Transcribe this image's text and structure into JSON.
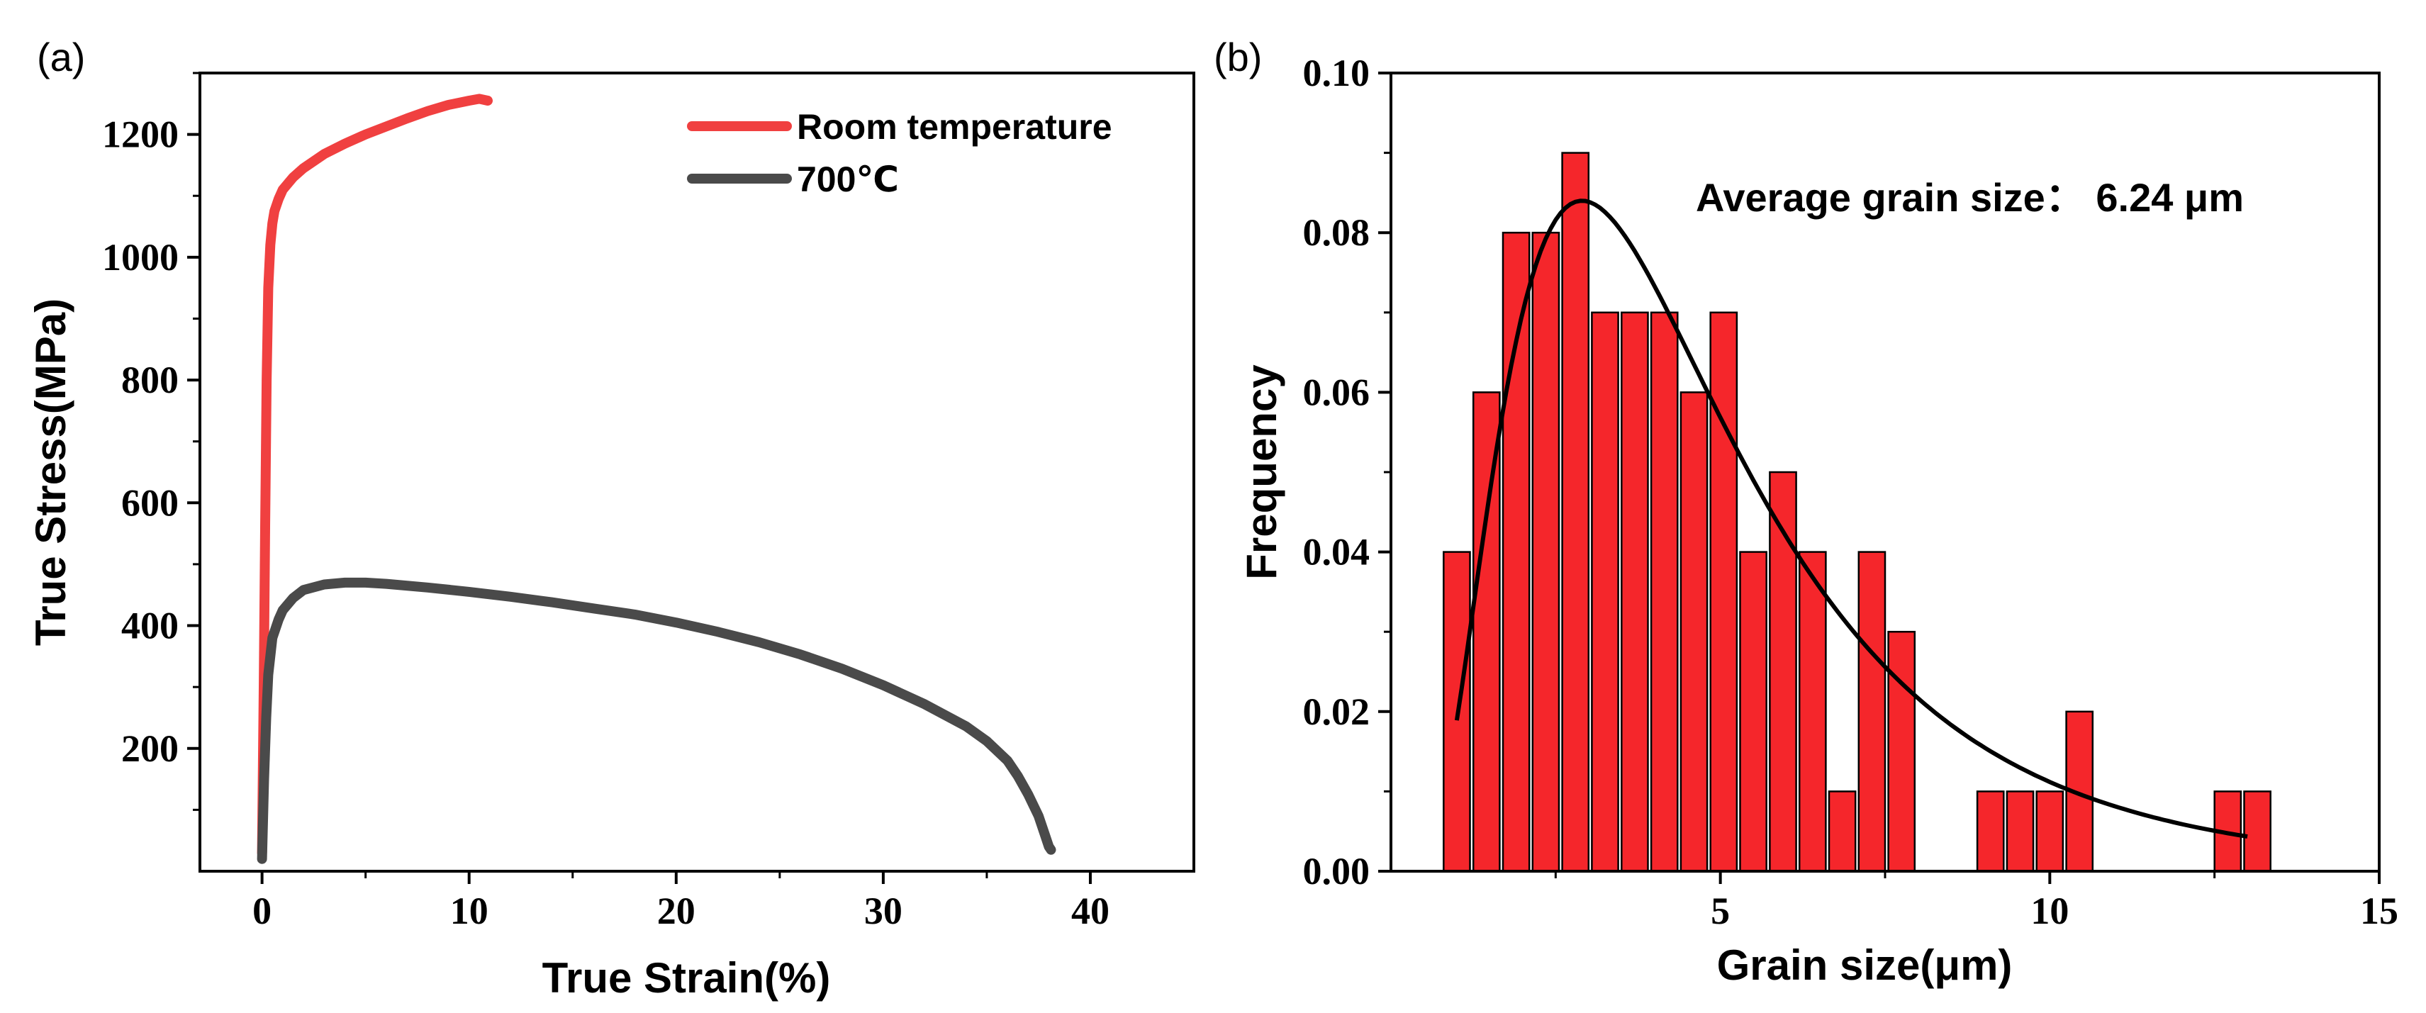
{
  "chart_data": [
    {
      "type": "line",
      "panel_label": "(a)",
      "xlabel": "True Strain(%)",
      "ylabel": "True Stress(MPa)",
      "xlim": [
        -3,
        45
      ],
      "ylim": [
        0,
        1300
      ],
      "xticks": [
        0,
        10,
        20,
        30,
        40
      ],
      "yticks": [
        200,
        400,
        600,
        800,
        1000,
        1200
      ],
      "legend_position": "top-right",
      "series": [
        {
          "name": "Room temperature",
          "color": "#f04040",
          "x": [
            0.0,
            0.08,
            0.15,
            0.22,
            0.3,
            0.4,
            0.5,
            0.6,
            0.8,
            1.0,
            1.5,
            2.0,
            3.0,
            4.0,
            5.0,
            6.0,
            7.0,
            8.0,
            9.0,
            10.0,
            10.5,
            10.9
          ],
          "y": [
            30,
            300,
            560,
            800,
            950,
            1020,
            1055,
            1075,
            1095,
            1110,
            1130,
            1145,
            1168,
            1185,
            1200,
            1213,
            1226,
            1238,
            1248,
            1255,
            1258,
            1255
          ]
        },
        {
          "name": "700℃",
          "color": "#4a4a4a",
          "x": [
            0.0,
            0.1,
            0.2,
            0.3,
            0.5,
            0.8,
            1.0,
            1.5,
            2.0,
            3.0,
            4.0,
            5.0,
            6.0,
            8.0,
            10.0,
            12.0,
            14.0,
            16.0,
            18.0,
            20.0,
            22.0,
            24.0,
            26.0,
            28.0,
            30.0,
            32.0,
            34.0,
            35.0,
            36.0,
            36.5,
            37.0,
            37.5,
            37.8,
            38.0,
            38.1
          ],
          "y": [
            20,
            150,
            250,
            320,
            380,
            410,
            425,
            445,
            458,
            467,
            470,
            470,
            468,
            462,
            455,
            447,
            438,
            428,
            418,
            405,
            390,
            373,
            353,
            330,
            303,
            272,
            236,
            212,
            180,
            155,
            125,
            90,
            60,
            40,
            35
          ]
        }
      ]
    },
    {
      "type": "bar",
      "panel_label": "(b)",
      "xlabel": "Grain size(μm)",
      "ylabel": "Frequency",
      "xlim": [
        0,
        15
      ],
      "ylim": [
        0,
        0.1
      ],
      "xticks": [
        5,
        10,
        15
      ],
      "yticks": [
        "0.00",
        "0.02",
        "0.04",
        "0.06",
        "0.08",
        "0.10"
      ],
      "annotation": "Average grain size： 6.24 μm",
      "bar_color": "#f5262b",
      "bar_width": 0.4,
      "bars": {
        "x": [
          1.0,
          1.45,
          1.9,
          2.35,
          2.8,
          3.25,
          3.7,
          4.15,
          4.6,
          5.05,
          5.5,
          5.95,
          6.4,
          6.85,
          7.3,
          7.75,
          8.2,
          8.65,
          9.1,
          9.55,
          10.0,
          10.45,
          10.9,
          11.35,
          11.8,
          12.25,
          12.7,
          13.15
        ],
        "values": [
          0.04,
          0.06,
          0.08,
          0.08,
          0.09,
          0.07,
          0.07,
          0.07,
          0.06,
          0.07,
          0.04,
          0.05,
          0.04,
          0.01,
          0.04,
          0.03,
          0.0,
          0.0,
          0.01,
          0.01,
          0.01,
          0.02,
          0.0,
          0.0,
          0.0,
          0.0,
          0.01,
          0.01
        ]
      },
      "fit_curve": {
        "type": "lognormal",
        "color": "#000000",
        "x_range": [
          1.0,
          13.0
        ],
        "peak_x": 2.9,
        "peak_y": 0.084
      }
    }
  ]
}
